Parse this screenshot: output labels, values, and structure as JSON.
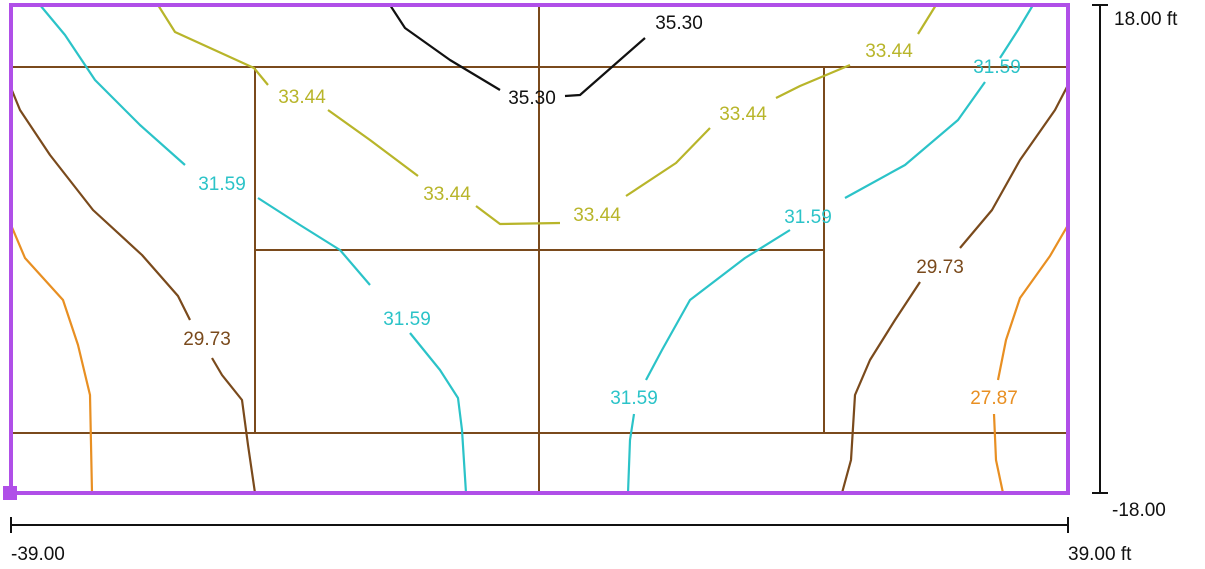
{
  "colors": {
    "frame": "#b04fe8",
    "grid": "#7a4a1c",
    "dimension": "#111111",
    "contour_35_30": "#111111",
    "contour_33_44": "#b8b52a",
    "contour_31_59": "#2bc3c8",
    "contour_29_73": "#7a4a1c",
    "contour_27_87": "#e88f22"
  },
  "dimensions": {
    "x_min_label": "-39.00",
    "x_max_label": "39.00 ft",
    "y_max_label": "18.00 ft",
    "y_min_label": "-18.00"
  },
  "contour_labels": {
    "c35_top": "35.30",
    "c35_mid": "35.30",
    "c33_right_top": "33.44",
    "c33_left": "33.44",
    "c33_right": "33.44",
    "c33_center_left": "33.44",
    "c33_center_right": "33.44",
    "c31_right_top": "31.59",
    "c31_left": "31.59",
    "c31_right": "31.59",
    "c31_center_left": "31.59",
    "c31_center_right": "31.59",
    "c29_right": "29.73",
    "c29_left": "29.73",
    "c27_right": "27.87"
  }
}
